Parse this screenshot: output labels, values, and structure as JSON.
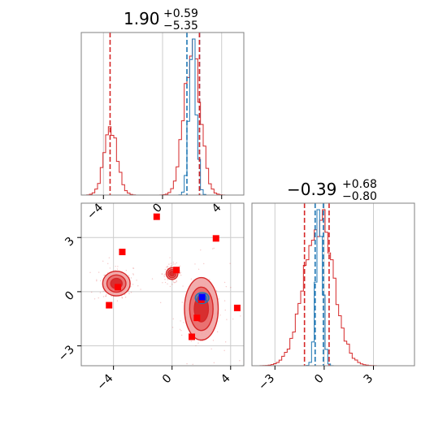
{
  "colors": {
    "red": "#d62728",
    "red_fill_light": "#f1a3a3",
    "red_fill_mid": "#e86a6a",
    "red_fill_dark": "#d62728",
    "blue": "#1f77b4",
    "marker_red": "#ff0000",
    "marker_blue": "#0000ff",
    "grid": "#cccccc",
    "axis": "#808080"
  },
  "chart_data": [
    {
      "type": "histogram",
      "panel": "top-left",
      "title_value": "1.90",
      "title_plus": "+0.59",
      "title_minus": "−5.35",
      "xlim": [
        -5.5,
        5.5
      ],
      "xticks": [
        -4,
        0,
        4
      ],
      "xtick_labels": [
        "−4",
        "0",
        "4"
      ],
      "grid": true,
      "vlines": [
        {
          "x": -3.55,
          "series": "red"
        },
        {
          "x": 1.65,
          "series": "blue"
        },
        {
          "x": 2.5,
          "series": "blue"
        },
        {
          "x": 2.5,
          "series": "red"
        }
      ],
      "series": [
        {
          "color": "red",
          "centers": [
            -3.5,
            2.0
          ],
          "widths": [
            0.45,
            0.55
          ],
          "weights": [
            0.27,
            0.73
          ]
        },
        {
          "color": "blue",
          "centers": [
            2.05
          ],
          "widths": [
            0.24
          ],
          "weights": [
            1.0
          ]
        }
      ]
    },
    {
      "type": "histogram",
      "panel": "bottom-right",
      "title_value": "−0.39",
      "title_plus": "+0.68",
      "title_minus": "−0.80",
      "xlim": [
        -4.4,
        5.5
      ],
      "xticks": [
        -3,
        0,
        3
      ],
      "xtick_labels": [
        "−3",
        "0",
        "3"
      ],
      "grid": true,
      "vlines": [
        {
          "x": -1.2,
          "series": "red"
        },
        {
          "x": -0.55,
          "series": "blue"
        },
        {
          "x": -0.05,
          "series": "blue"
        },
        {
          "x": 0.3,
          "series": "red"
        }
      ],
      "series": [
        {
          "color": "red",
          "centers": [
            -0.35
          ],
          "widths": [
            0.9
          ],
          "weights": [
            1.0
          ]
        },
        {
          "color": "blue",
          "centers": [
            -0.3
          ],
          "widths": [
            0.2
          ],
          "weights": [
            1.0
          ]
        }
      ]
    },
    {
      "type": "scatter",
      "panel": "bottom-left",
      "xlim": [
        -6.2,
        4.9
      ],
      "ylim": [
        -4.1,
        4.9
      ],
      "xticks": [
        -4,
        0,
        4
      ],
      "xtick_labels": [
        "−4",
        "0",
        "4"
      ],
      "yticks": [
        -3,
        0,
        3
      ],
      "ytick_labels": [
        "−3",
        "0",
        "3"
      ],
      "grid": true,
      "red_markers": [
        {
          "x": -1.05,
          "y": 4.15
        },
        {
          "x": 3.0,
          "y": 2.95
        },
        {
          "x": -3.4,
          "y": 2.2
        },
        {
          "x": 0.3,
          "y": 1.2
        },
        {
          "x": -3.7,
          "y": 0.25
        },
        {
          "x": -4.3,
          "y": -0.75
        },
        {
          "x": 4.45,
          "y": -0.9
        },
        {
          "x": 1.7,
          "y": -1.45
        },
        {
          "x": 1.35,
          "y": -2.5
        },
        {
          "x": 2.0,
          "y": -0.45
        }
      ],
      "blue_markers": [
        {
          "x": 2.05,
          "y": -0.3
        }
      ],
      "red_clusters": [
        {
          "x": -3.8,
          "y": 0.45,
          "rx": 1.3,
          "ry": 0.95
        },
        {
          "x": 2.0,
          "y": -0.95,
          "rx": 1.6,
          "ry": 2.4
        },
        {
          "x": 0.0,
          "y": 1.0,
          "rx": 0.55,
          "ry": 0.45
        }
      ],
      "blue_clusters": [
        {
          "x": 2.05,
          "y": -0.35,
          "rx": 0.85,
          "ry": 0.55
        }
      ]
    }
  ]
}
